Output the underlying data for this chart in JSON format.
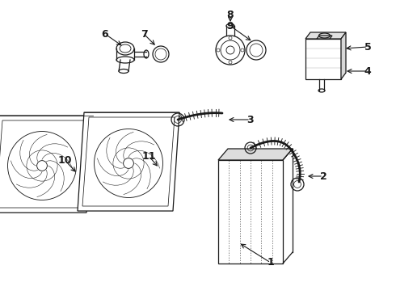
{
  "background_color": "#ffffff",
  "line_color": "#1a1a1a",
  "label_fontsize": 9,
  "label_fontweight": "bold",
  "figsize": [
    4.9,
    3.6
  ],
  "dpi": 100
}
